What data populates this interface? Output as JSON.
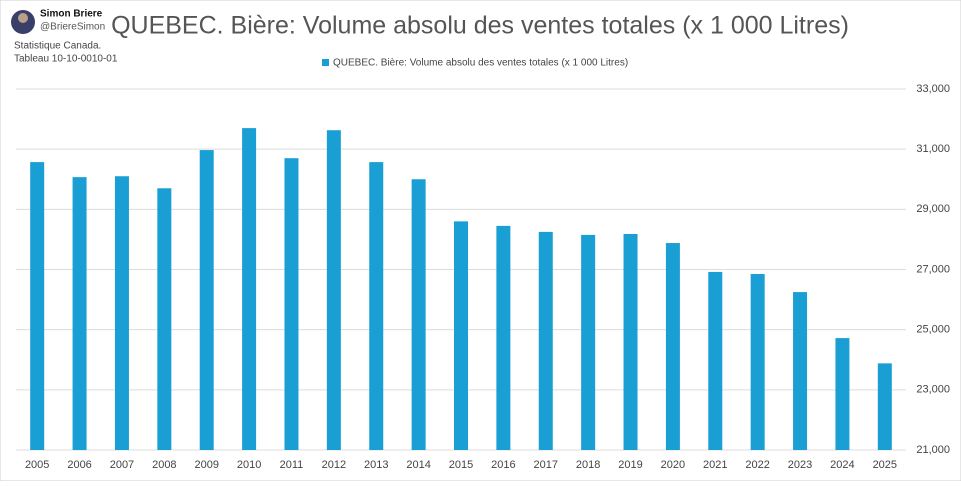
{
  "author": {
    "name": "Simon Briere",
    "handle": "@BriereSimon"
  },
  "source": [
    "Statistique Canada.",
    "Tableau 10-10-0010-01"
  ],
  "chart_data": {
    "type": "bar",
    "title": "QUEBEC. Bière: Volume absolu des ventes totales (x 1 000 Litres)",
    "categories": [
      "2005",
      "2006",
      "2007",
      "2008",
      "2009",
      "2010",
      "2011",
      "2012",
      "2013",
      "2014",
      "2015",
      "2016",
      "2017",
      "2018",
      "2019",
      "2020",
      "2021",
      "2022",
      "2023",
      "2024",
      "2025"
    ],
    "series": [
      {
        "name": "QUEBEC. Bière: Volume absolu des ventes totales (x 1 000 Litres)",
        "color": "#1a9fd4",
        "values": [
          30570,
          30070,
          30100,
          29700,
          30970,
          31700,
          30700,
          31630,
          30570,
          30000,
          28600,
          28450,
          28250,
          28150,
          28180,
          27880,
          26920,
          26850,
          26250,
          24720,
          23880
        ]
      }
    ],
    "ylim": [
      21000,
      33000
    ],
    "yticks": [
      {
        "value": 21000,
        "label": "21,000"
      },
      {
        "value": 23000,
        "label": "23,000"
      },
      {
        "value": 25000,
        "label": "25,000"
      },
      {
        "value": 27000,
        "label": "27,000"
      },
      {
        "value": 29000,
        "label": "29,000"
      },
      {
        "value": 31000,
        "label": "31,000"
      },
      {
        "value": 33000,
        "label": "33,000"
      }
    ],
    "grid": true,
    "legend": "top"
  }
}
